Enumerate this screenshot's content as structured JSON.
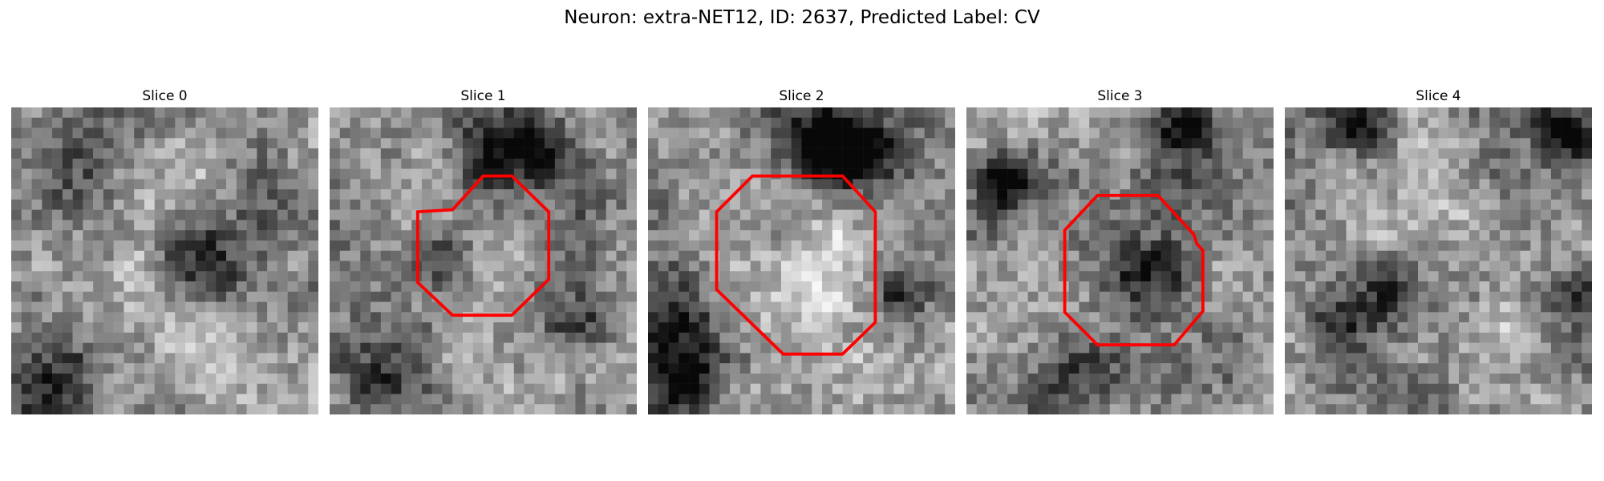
{
  "figure": {
    "title": "Neuron: extra-NET12, ID: 2637, Predicted Label: CV",
    "outline_color": "#ff0000",
    "colormap": "gray",
    "panels": [
      {
        "title": "Slice 0",
        "has_outline": false
      },
      {
        "title": "Slice 1",
        "has_outline": true
      },
      {
        "title": "Slice 2",
        "has_outline": true
      },
      {
        "title": "Slice 3",
        "has_outline": true
      },
      {
        "title": "Slice 4",
        "has_outline": false
      }
    ]
  }
}
